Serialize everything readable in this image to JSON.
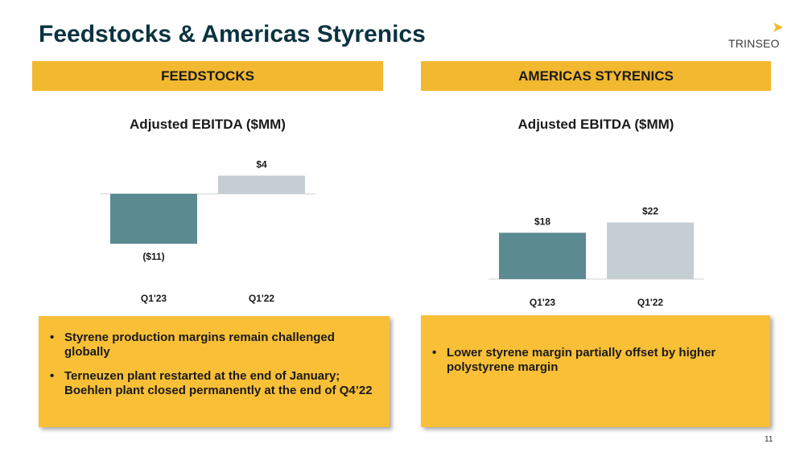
{
  "page": {
    "title": "Feedstocks & Americas Styrenics",
    "logo_text": "TRINSEO",
    "page_number": "11"
  },
  "colors": {
    "accent": "#f2b830",
    "box": "#f8bf37",
    "bar_current": "#5b8a91",
    "bar_prior": "#c5cfd3",
    "title": "#0b3340"
  },
  "sections": [
    {
      "header": "FEEDSTOCKS",
      "bullets": [
        "Styrene production margins remain challenged globally",
        "Terneuzen plant restarted at the end of January; Boehlen plant closed permanently at the end of Q4’22"
      ]
    },
    {
      "header": "AMERICAS STYRENICS",
      "bullets": [
        "Lower styrene margin partially offset by higher polystyrene margin"
      ]
    }
  ],
  "chart_data": [
    {
      "type": "bar",
      "title": "Adjusted EBITDA ($MM)",
      "categories": [
        "Q1'23",
        "Q1'22"
      ],
      "values": [
        -11,
        4
      ],
      "labels": [
        "($11)",
        "$4"
      ],
      "xlabel": "",
      "ylabel": ""
    },
    {
      "type": "bar",
      "title": "Adjusted EBITDA ($MM)",
      "categories": [
        "Q1'23",
        "Q1'22"
      ],
      "values": [
        18,
        22
      ],
      "labels": [
        "$18",
        "$22"
      ],
      "xlabel": "",
      "ylabel": ""
    }
  ]
}
